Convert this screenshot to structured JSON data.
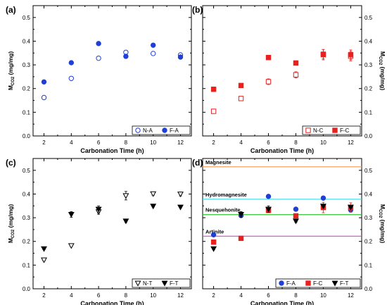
{
  "chart_data": [
    {
      "type": "scatter",
      "panel_label": "(a)",
      "xlabel": "Carbonation Time (h)",
      "ylabel_main": "M",
      "ylabel_sub": "CO2",
      "ylabel_unit": " (mg/mg)",
      "ylabel_side": "left",
      "xlim": [
        1.2,
        12.8
      ],
      "ylim": [
        0,
        0.55
      ],
      "x_ticks": [
        "2",
        "4",
        "6",
        "8",
        "10",
        "12"
      ],
      "y_ticks": [
        "0.0",
        "0.1",
        "0.2",
        "0.3",
        "0.4",
        "0.5"
      ],
      "legend": "bottom-right",
      "series": [
        {
          "name": "N-A",
          "marker": "circle-open",
          "color": "#1f3fd6",
          "x": [
            2,
            4,
            6,
            8,
            10,
            12
          ],
          "y": [
            0.162,
            0.243,
            0.328,
            0.353,
            0.348,
            0.342
          ],
          "err": [
            0,
            0,
            0,
            0,
            0,
            0
          ]
        },
        {
          "name": "F-A",
          "marker": "circle-filled",
          "color": "#1f3fd6",
          "x": [
            2,
            4,
            6,
            8,
            10,
            12
          ],
          "y": [
            0.228,
            0.309,
            0.39,
            0.336,
            0.383,
            0.333
          ],
          "err": [
            0,
            0,
            0,
            0,
            0,
            0
          ]
        }
      ],
      "ref_lines": []
    },
    {
      "type": "scatter",
      "panel_label": "(b)",
      "xlabel": "Carbonation Time (h)",
      "ylabel_main": "M",
      "ylabel_sub": "CO2",
      "ylabel_unit": " (mg/mg)",
      "ylabel_side": "right",
      "xlim": [
        1.2,
        12.8
      ],
      "ylim": [
        0,
        0.55
      ],
      "x_ticks": [
        "2",
        "4",
        "6",
        "8",
        "10",
        "12"
      ],
      "y_ticks": [
        "0.0",
        "0.1",
        "0.2",
        "0.3",
        "0.4",
        "0.5"
      ],
      "legend": "bottom-right",
      "series": [
        {
          "name": "N-C",
          "marker": "square-open",
          "color": "#e8201e",
          "x": [
            2,
            4,
            6,
            8,
            10,
            12
          ],
          "y": [
            0.104,
            0.158,
            0.229,
            0.258,
            0.345,
            0.337
          ],
          "err": [
            0,
            0.005,
            0.012,
            0.013,
            0.02,
            0.02
          ]
        },
        {
          "name": "F-C",
          "marker": "square-filled",
          "color": "#e8201e",
          "x": [
            2,
            4,
            6,
            8,
            10,
            12
          ],
          "y": [
            0.197,
            0.213,
            0.331,
            0.308,
            0.343,
            0.343
          ],
          "err": [
            0.004,
            0.007,
            0.005,
            0.005,
            0.022,
            0.02
          ]
        }
      ],
      "ref_lines": []
    },
    {
      "type": "scatter",
      "panel_label": "(c)",
      "xlabel": "Carbonation Time (h)",
      "ylabel_main": "M",
      "ylabel_sub": "CO2",
      "ylabel_unit": " (mg/mg)",
      "ylabel_side": "left",
      "xlim": [
        1.2,
        12.8
      ],
      "ylim": [
        0,
        0.55
      ],
      "x_ticks": [
        "2",
        "4",
        "6",
        "8",
        "10",
        "12"
      ],
      "y_ticks": [
        "0.0",
        "0.1",
        "0.2",
        "0.3",
        "0.4",
        "0.5"
      ],
      "legend": "bottom-right",
      "series": [
        {
          "name": "N-T",
          "marker": "tri-open",
          "color": "#000000",
          "x": [
            2,
            4,
            6,
            8,
            10,
            12
          ],
          "y": [
            0.122,
            0.182,
            0.325,
            0.393,
            0.401,
            0.4
          ],
          "err": [
            0.004,
            0.004,
            0.01,
            0.018,
            0.006,
            0.008
          ]
        },
        {
          "name": "F-T",
          "marker": "tri-filled",
          "color": "#000000",
          "x": [
            2,
            4,
            6,
            8,
            10,
            12
          ],
          "y": [
            0.169,
            0.314,
            0.336,
            0.286,
            0.349,
            0.345
          ],
          "err": [
            0.004,
            0.012,
            0.014,
            0.005,
            0.004,
            0.004
          ]
        }
      ],
      "ref_lines": []
    },
    {
      "type": "scatter",
      "panel_label": "(d)",
      "xlabel": "Carbonation Time (h)",
      "ylabel_main": "M",
      "ylabel_sub": "CO2",
      "ylabel_unit": " (mg/mg)",
      "ylabel_side": "right",
      "xlim": [
        1.2,
        12.8
      ],
      "ylim": [
        0,
        0.55
      ],
      "x_ticks": [
        "2",
        "4",
        "6",
        "8",
        "10",
        "12"
      ],
      "y_ticks": [
        "0.0",
        "0.1",
        "0.2",
        "0.3",
        "0.4",
        "0.5"
      ],
      "legend": "bottom-right",
      "series": [
        {
          "name": "F-A",
          "marker": "circle-filled",
          "color": "#1f3fd6",
          "x": [
            2,
            4,
            6,
            8,
            10,
            12
          ],
          "y": [
            0.228,
            0.309,
            0.39,
            0.336,
            0.383,
            0.333
          ],
          "err": [
            0,
            0,
            0,
            0,
            0,
            0
          ]
        },
        {
          "name": "F-C",
          "marker": "square-filled",
          "color": "#e8201e",
          "x": [
            2,
            4,
            6,
            8,
            10,
            12
          ],
          "y": [
            0.197,
            0.213,
            0.331,
            0.308,
            0.343,
            0.343
          ],
          "err": [
            0.004,
            0.007,
            0.005,
            0.005,
            0.022,
            0.02
          ]
        },
        {
          "name": "F-T",
          "marker": "tri-filled",
          "color": "#000000",
          "x": [
            2,
            4,
            6,
            8,
            10,
            12
          ],
          "y": [
            0.169,
            0.314,
            0.336,
            0.286,
            0.349,
            0.345
          ],
          "err": [
            0.004,
            0.012,
            0.014,
            0.005,
            0.004,
            0.004
          ]
        }
      ],
      "ref_lines": [
        {
          "label": "Magnesite",
          "y": 0.515,
          "color": "#f4a460"
        },
        {
          "label": "Hydromagnesite",
          "y": 0.378,
          "color": "#40e0e8"
        },
        {
          "label": "Nesquehonite",
          "y": 0.313,
          "color": "#30c030"
        },
        {
          "label": "Artinite",
          "y": 0.222,
          "color": "#e040e0"
        }
      ]
    }
  ]
}
